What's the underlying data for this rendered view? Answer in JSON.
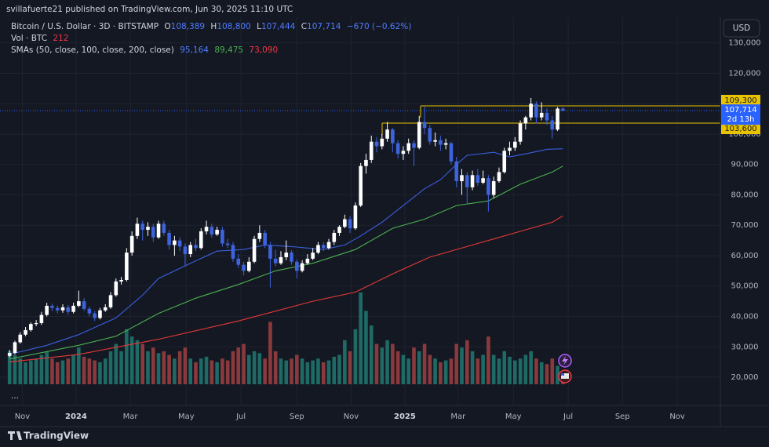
{
  "header": {
    "published": "svillafuerte21 published on TradingView.com, Jun 30, 2025 11:10 UTC",
    "symbol": "Bitcoin / U.S. Dollar · 3D · BITSTAMP",
    "ohlc": [
      [
        "O",
        "108,389"
      ],
      [
        "H",
        "108,800"
      ],
      [
        "L",
        "107,444"
      ],
      [
        "C",
        "107,714"
      ]
    ],
    "change": "−670 (−0.62%)",
    "volume_label": "Vol · BTC",
    "volume": "212",
    "sma_label": "SMAs (50, close, 100, close, 200, close)",
    "sma_values": [
      "95,164",
      "89,475",
      "73,090"
    ],
    "currency": "USD",
    "more": "...",
    "brand": "TradingView"
  },
  "chart_data": {
    "type": "candlestick",
    "up_color": "#ffffff",
    "down_color": "#3d63dd",
    "volume_up_color": "#1e6b66",
    "volume_down_color": "#8a3a3c",
    "grid": true,
    "xlim": [
      -1.8,
      133.6
    ],
    "ylim": [
      10710,
      138450
    ],
    "xticks": [
      {
        "value": 2.4,
        "label": "Nov"
      },
      {
        "value": 12.5,
        "label": "2024"
      },
      {
        "value": 22.7,
        "label": "Mar"
      },
      {
        "value": 33.2,
        "label": "May"
      },
      {
        "value": 43.5,
        "label": "Jul"
      },
      {
        "value": 54.0,
        "label": "Sep"
      },
      {
        "value": 64.2,
        "label": "Nov"
      },
      {
        "value": 74.3,
        "label": "2025"
      },
      {
        "value": 84.3,
        "label": "Mar"
      },
      {
        "value": 94.7,
        "label": "May"
      },
      {
        "value": 105.0,
        "label": "Jul"
      },
      {
        "value": 115.2,
        "label": "Sep"
      },
      {
        "value": 125.5,
        "label": "Nov"
      }
    ],
    "yticks": [
      {
        "value": 20000,
        "label": "20,000"
      },
      {
        "value": 30000,
        "label": "30,000"
      },
      {
        "value": 40000,
        "label": "40,000"
      },
      {
        "value": 50000,
        "label": "50,000"
      },
      {
        "value": 60000,
        "label": "60,000"
      },
      {
        "value": 70000,
        "label": "70,000"
      },
      {
        "value": 80000,
        "label": "80,000"
      },
      {
        "value": 90000,
        "label": "90,000"
      },
      {
        "value": 100000,
        "label": "100,000"
      },
      {
        "value": 110000,
        "label": "110,000"
      },
      {
        "value": 120000,
        "label": "120,000"
      },
      {
        "value": 130000,
        "label": "130,000"
      }
    ],
    "candles": [
      [
        27000,
        29000,
        26500,
        28000
      ],
      [
        28000,
        32000,
        27500,
        31500
      ],
      [
        31500,
        34800,
        31000,
        34000
      ],
      [
        34000,
        36500,
        33500,
        35500
      ],
      [
        35500,
        38000,
        35000,
        37500
      ],
      [
        37500,
        38800,
        36800,
        37800
      ],
      [
        37800,
        41500,
        37200,
        40500
      ],
      [
        40500,
        44500,
        40000,
        43500
      ],
      [
        43500,
        44200,
        41800,
        42800
      ],
      [
        42800,
        43600,
        41000,
        42000
      ],
      [
        42000,
        44000,
        41200,
        43000
      ],
      [
        43000,
        43800,
        40500,
        41500
      ],
      [
        41500,
        44500,
        41000,
        43500
      ],
      [
        43500,
        48500,
        43000,
        45000
      ],
      [
        45000,
        46000,
        41800,
        42500
      ],
      [
        42500,
        43200,
        40000,
        41000
      ],
      [
        41000,
        41800,
        38500,
        39500
      ],
      [
        39500,
        42800,
        39000,
        42000
      ],
      [
        42000,
        44000,
        41500,
        43000
      ],
      [
        43000,
        48000,
        42500,
        47000
      ],
      [
        47000,
        52500,
        46500,
        51500
      ],
      [
        51500,
        53000,
        50500,
        52000
      ],
      [
        52000,
        62500,
        51500,
        61000
      ],
      [
        61000,
        68000,
        60000,
        66500
      ],
      [
        66500,
        72500,
        65500,
        70500
      ],
      [
        70500,
        71500,
        65000,
        68500
      ],
      [
        68500,
        71000,
        66500,
        69500
      ],
      [
        69500,
        70500,
        64500,
        66000
      ],
      [
        66000,
        71500,
        65500,
        70500
      ],
      [
        70500,
        71500,
        66500,
        67500
      ],
      [
        67500,
        68500,
        62000,
        63500
      ],
      [
        63500,
        66500,
        60000,
        65000
      ],
      [
        65000,
        66000,
        61500,
        63000
      ],
      [
        63000,
        64000,
        56800,
        60500
      ],
      [
        60500,
        64500,
        59500,
        63500
      ],
      [
        63500,
        65500,
        61500,
        62500
      ],
      [
        62500,
        69000,
        62000,
        68000
      ],
      [
        68000,
        71500,
        67000,
        69500
      ],
      [
        69500,
        70500,
        66000,
        67000
      ],
      [
        67000,
        69500,
        66500,
        68500
      ],
      [
        68500,
        69500,
        63000,
        64000
      ],
      [
        64000,
        65500,
        62500,
        63500
      ],
      [
        63500,
        64500,
        58000,
        59000
      ],
      [
        59000,
        60500,
        56000,
        57000
      ],
      [
        57000,
        58000,
        53500,
        55000
      ],
      [
        55000,
        59500,
        54500,
        58000
      ],
      [
        58000,
        66500,
        57500,
        65500
      ],
      [
        65500,
        70000,
        64500,
        67500
      ],
      [
        67500,
        68500,
        62500,
        63500
      ],
      [
        63500,
        64500,
        49500,
        59000
      ],
      [
        59000,
        62000,
        56500,
        57500
      ],
      [
        57500,
        61500,
        57000,
        59500
      ],
      [
        59500,
        65000,
        58500,
        61000
      ],
      [
        61000,
        61800,
        57000,
        58000
      ],
      [
        58000,
        58800,
        52500,
        55000
      ],
      [
        55000,
        58500,
        54500,
        57500
      ],
      [
        57500,
        60500,
        57000,
        59000
      ],
      [
        59000,
        62500,
        58500,
        61000
      ],
      [
        61000,
        64500,
        60500,
        63500
      ],
      [
        63500,
        64500,
        61500,
        62500
      ],
      [
        62500,
        65500,
        62000,
        64500
      ],
      [
        64500,
        68500,
        63500,
        67500
      ],
      [
        67500,
        70000,
        66500,
        69500
      ],
      [
        69500,
        73500,
        69000,
        72000
      ],
      [
        72000,
        73000,
        67500,
        69000
      ],
      [
        69000,
        77500,
        68500,
        76500
      ],
      [
        76500,
        90500,
        76000,
        89500
      ],
      [
        89500,
        93500,
        87000,
        91500
      ],
      [
        91500,
        99500,
        90500,
        97500
      ],
      [
        97500,
        99000,
        94000,
        96000
      ],
      [
        96000,
        100000,
        95000,
        98500
      ],
      [
        98500,
        104000,
        97500,
        101500
      ],
      [
        101500,
        102000,
        94000,
        97000
      ],
      [
        97000,
        98000,
        92000,
        93500
      ],
      [
        93500,
        96000,
        91500,
        94500
      ],
      [
        94500,
        98500,
        93500,
        97000
      ],
      [
        97000,
        98000,
        89500,
        95500
      ],
      [
        95500,
        106000,
        95000,
        104000
      ],
      [
        104000,
        109000,
        100000,
        102000
      ],
      [
        102000,
        103000,
        96500,
        97500
      ],
      [
        97500,
        100500,
        96000,
        98000
      ],
      [
        98000,
        99500,
        94500,
        96500
      ],
      [
        96500,
        98500,
        95000,
        97000
      ],
      [
        97000,
        97500,
        90000,
        91000
      ],
      [
        91000,
        92500,
        82500,
        84500
      ],
      [
        84500,
        88500,
        80000,
        86500
      ],
      [
        86500,
        87500,
        76800,
        82500
      ],
      [
        82500,
        88000,
        81500,
        86500
      ],
      [
        86500,
        88500,
        83000,
        84000
      ],
      [
        84000,
        88000,
        83500,
        85500
      ],
      [
        85500,
        86500,
        74500,
        80000
      ],
      [
        80000,
        86000,
        79000,
        84500
      ],
      [
        84500,
        89000,
        84000,
        87500
      ],
      [
        87500,
        95500,
        87000,
        94500
      ],
      [
        94500,
        97500,
        93000,
        95500
      ],
      [
        95500,
        99000,
        94500,
        97500
      ],
      [
        97500,
        104500,
        96500,
        103500
      ],
      [
        103500,
        106000,
        101500,
        105500
      ],
      [
        105500,
        111900,
        104500,
        110000
      ],
      [
        110000,
        110800,
        103500,
        105500
      ],
      [
        105500,
        110500,
        104500,
        107000
      ],
      [
        107000,
        108500,
        103000,
        104500
      ],
      [
        104500,
        106000,
        98500,
        101500
      ],
      [
        101500,
        108900,
        101000,
        108389
      ],
      [
        108389,
        108800,
        107444,
        107714
      ]
    ],
    "volume": [
      900,
      800,
      700,
      600,
      650,
      700,
      800,
      900,
      700,
      600,
      650,
      700,
      800,
      1000,
      750,
      700,
      650,
      600,
      700,
      900,
      1100,
      900,
      1500,
      1300,
      1200,
      1100,
      900,
      1000,
      850,
      900,
      800,
      700,
      900,
      1000,
      700,
      600,
      700,
      750,
      650,
      600,
      700,
      650,
      900,
      1000,
      1100,
      800,
      900,
      850,
      700,
      1700,
      900,
      700,
      650,
      700,
      800,
      700,
      600,
      650,
      700,
      600,
      650,
      750,
      800,
      1200,
      900,
      1500,
      2500,
      2000,
      1600,
      1100,
      1000,
      1200,
      1100,
      900,
      800,
      700,
      1000,
      900,
      1100,
      800,
      700,
      600,
      650,
      700,
      1100,
      1000,
      1200,
      900,
      700,
      800,
      1300,
      800,
      700,
      900,
      750,
      650,
      700,
      800,
      900,
      700,
      600,
      550,
      700,
      500,
      212
    ],
    "series": [
      {
        "color": "#3a5fe0",
        "x": [
          0,
          7,
          13,
          20,
          25,
          28,
          34,
          39,
          44,
          48,
          53,
          59,
          63,
          66,
          70,
          74,
          78,
          81,
          84,
          86,
          91,
          94,
          97,
          101,
          104
        ],
        "values": [
          27500,
          30500,
          34000,
          39500,
          47000,
          52500,
          57500,
          61500,
          62000,
          63500,
          63000,
          62000,
          63500,
          66500,
          71000,
          76500,
          82000,
          85000,
          90000,
          93000,
          94000,
          92500,
          93500,
          95000,
          95164
        ]
      },
      {
        "color": "#4caf50",
        "x": [
          0,
          13,
          20,
          28,
          35,
          43,
          50,
          57,
          65,
          72,
          78,
          84,
          90,
          96,
          102,
          104
        ],
        "values": [
          26000,
          30500,
          33500,
          41000,
          46000,
          50500,
          55000,
          57500,
          62000,
          69000,
          72000,
          76500,
          78000,
          83500,
          87500,
          89475
        ]
      },
      {
        "color": "#e53935",
        "x": [
          0,
          13,
          28,
          43,
          57,
          65,
          72,
          79,
          87,
          94,
          102,
          104
        ],
        "values": [
          25000,
          27500,
          32500,
          38500,
          45000,
          48000,
          54000,
          59500,
          63500,
          67000,
          71000,
          73090
        ]
      }
    ],
    "levels": [
      {
        "value": 109300,
        "label": "109,300"
      },
      {
        "value": 103600,
        "label": "103,600"
      }
    ],
    "level_color": "#e8c400",
    "last_price": {
      "value": 107714,
      "label": "107,714"
    },
    "last_price_color": "#2962ff",
    "countdown": "2d 13h"
  }
}
